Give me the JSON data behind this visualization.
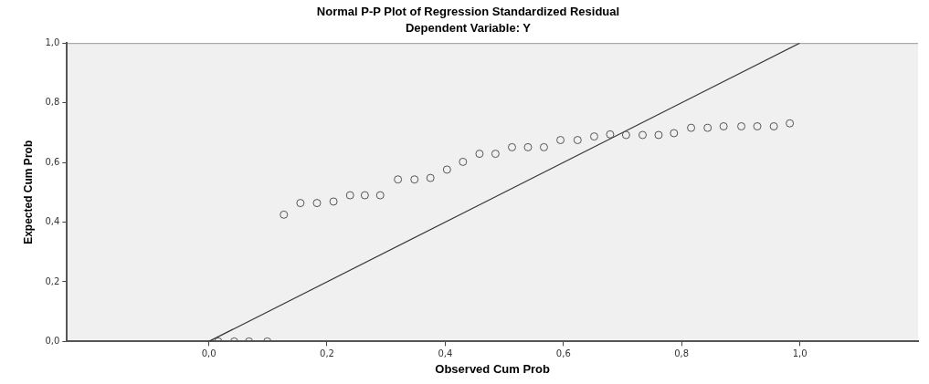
{
  "chart_data": {
    "type": "scatter",
    "title": "Normal P-P Plot of Regression Standardized Residual",
    "subtitle": "Dependent Variable: Y",
    "xlabel": "Observed Cum Prob",
    "ylabel": "Expected Cum Prob",
    "xlim": [
      -0.24,
      1.2
    ],
    "ylim": [
      0,
      1
    ],
    "xticks": [
      {
        "value": 0,
        "label": "0,0"
      },
      {
        "value": 0.2,
        "label": "0,2"
      },
      {
        "value": 0.4,
        "label": "0,4"
      },
      {
        "value": 0.6,
        "label": "0,6"
      },
      {
        "value": 0.8,
        "label": "0,8"
      },
      {
        "value": 1,
        "label": "1,0"
      }
    ],
    "yticks": [
      {
        "value": 0,
        "label": "0,0"
      },
      {
        "value": 0.2,
        "label": "0,2"
      },
      {
        "value": 0.4,
        "label": "0,4"
      },
      {
        "value": 0.6,
        "label": "0,6"
      },
      {
        "value": 0.8,
        "label": "0,8"
      },
      {
        "value": 1,
        "label": "1,0"
      }
    ],
    "grid": false,
    "legend": false,
    "marker": "circle",
    "series": [
      {
        "color": "#555555",
        "x": [
          0.016,
          0.043,
          0.068,
          0.099,
          0.127,
          0.155,
          0.183,
          0.211,
          0.239,
          0.264,
          0.29,
          0.32,
          0.348,
          0.375,
          0.403,
          0.43,
          0.458,
          0.485,
          0.513,
          0.54,
          0.567,
          0.595,
          0.624,
          0.652,
          0.679,
          0.706,
          0.734,
          0.761,
          0.787,
          0.816,
          0.844,
          0.871,
          0.901,
          0.928,
          0.956,
          0.983
        ],
        "values": [
          0,
          0,
          0,
          0,
          0.425,
          0.464,
          0.464,
          0.469,
          0.49,
          0.49,
          0.49,
          0.543,
          0.543,
          0.548,
          0.576,
          0.602,
          0.629,
          0.629,
          0.651,
          0.651,
          0.651,
          0.675,
          0.675,
          0.687,
          0.694,
          0.692,
          0.692,
          0.692,
          0.698,
          0.716,
          0.716,
          0.721,
          0.721,
          0.721,
          0.721,
          0.731
        ]
      },
      {
        "type": "line",
        "color": "#333333",
        "marker": "none",
        "line_style": "solid",
        "x": [
          0,
          1
        ],
        "values": [
          0,
          1
        ]
      }
    ]
  }
}
